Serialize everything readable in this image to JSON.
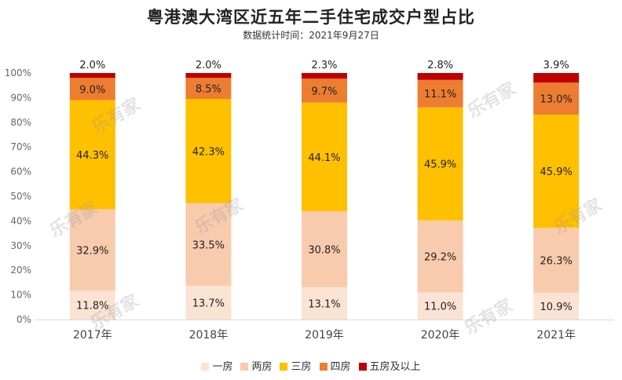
{
  "chart_data": {
    "type": "bar",
    "stacked": true,
    "title": "粤港澳大湾区近五年二手住宅成交户型占比",
    "subtitle": "数据统计时间：2021年9月27日",
    "categories": [
      "2017年",
      "2018年",
      "2019年",
      "2020年",
      "2021年"
    ],
    "ylim": [
      0,
      100
    ],
    "yticks": [
      "0%",
      "10%",
      "20%",
      "30%",
      "40%",
      "50%",
      "60%",
      "70%",
      "80%",
      "90%",
      "100%"
    ],
    "series": [
      {
        "name": "一房",
        "color": "#fbe3d4",
        "values": [
          11.8,
          13.7,
          13.1,
          11.0,
          10.9
        ],
        "labels": [
          "11.8%",
          "13.7%",
          "13.1%",
          "11.0%",
          "10.9%"
        ]
      },
      {
        "name": "两房",
        "color": "#f8cbad",
        "values": [
          32.9,
          33.5,
          30.8,
          29.2,
          26.3
        ],
        "labels": [
          "32.9%",
          "33.5%",
          "30.8%",
          "29.2%",
          "26.3%"
        ]
      },
      {
        "name": "三房",
        "color": "#ffc000",
        "values": [
          44.3,
          42.3,
          44.1,
          45.9,
          45.9
        ],
        "labels": [
          "44.3%",
          "42.3%",
          "44.1%",
          "45.9%",
          "45.9%"
        ]
      },
      {
        "name": "四房",
        "color": "#ed7d31",
        "values": [
          9.0,
          8.5,
          9.7,
          11.1,
          13.0
        ],
        "labels": [
          "9.0%",
          "8.5%",
          "9.7%",
          "11.1%",
          "13.0%"
        ]
      },
      {
        "name": "五房及以上",
        "color": "#c00000",
        "values": [
          2.0,
          2.0,
          2.3,
          2.8,
          3.9
        ],
        "labels": [
          "2.0%",
          "2.0%",
          "2.3%",
          "2.8%",
          "3.9%"
        ]
      }
    ],
    "grid": false,
    "legend_position": "bottom"
  },
  "watermark": "乐有家"
}
